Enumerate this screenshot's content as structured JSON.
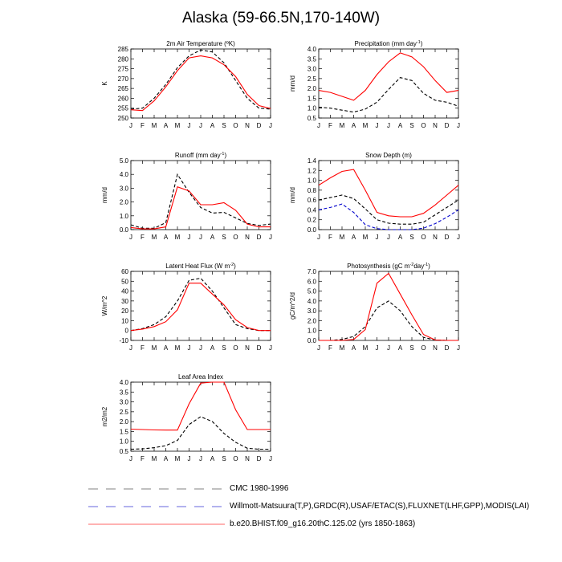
{
  "title": "Alaska (59-66.5N,170-140W)",
  "months": [
    "J",
    "F",
    "M",
    "A",
    "M",
    "J",
    "J",
    "A",
    "S",
    "O",
    "N",
    "D",
    "J"
  ],
  "series_style": {
    "cmc": {
      "color": "#000000",
      "dashed": true
    },
    "willmott": {
      "color": "#0000cc",
      "dashed": true
    },
    "model": {
      "color": "#ff0000",
      "dashed": false
    }
  },
  "legend": [
    {
      "key": "cmc",
      "label": "CMC 1980-1996",
      "color": "#808080"
    },
    {
      "key": "willmott",
      "label": "Willmott-Matsuura(T,P),GRDC(R),USAF/ETAC(S),FLUXNET(LHF,GPP),MODIS(LAI)",
      "color": "#6666dd"
    },
    {
      "key": "model",
      "label": "b.e20.BHIST.f09_g16.20thC.125.02 (yrs 1850-1863)",
      "color": "#ff6666"
    }
  ],
  "chart_data": [
    {
      "type": "line",
      "title": "2m Air Temperature (ºK)",
      "ylabel": "K",
      "ylim": [
        250,
        285
      ],
      "yticks": [
        "250",
        "255",
        "260",
        "265",
        "270",
        "275",
        "280",
        "285"
      ],
      "x": [
        "J",
        "F",
        "M",
        "A",
        "M",
        "J",
        "J",
        "A",
        "S",
        "O",
        "N",
        "D",
        "J"
      ],
      "series": [
        {
          "key": "cmc",
          "name": "CMC 1980-1996",
          "values": [
            254.5,
            255,
            260,
            267,
            275.5,
            281.5,
            284.5,
            283.5,
            278,
            269,
            260,
            255,
            254.5
          ]
        },
        {
          "key": "model",
          "name": "b.e20.BHIST",
          "values": [
            254.2,
            253.8,
            258.7,
            265.8,
            274,
            280.5,
            281.5,
            280.5,
            277,
            271,
            262,
            256.3,
            254.8
          ]
        }
      ]
    },
    {
      "type": "line",
      "title": "Precipitation (mm day-1)",
      "ylabel": "mm/d",
      "ylim": [
        0.5,
        4.0
      ],
      "yticks": [
        "0.5",
        "1.0",
        "1.5",
        "2.0",
        "2.5",
        "3.0",
        "3.5",
        "4.0"
      ],
      "x": [
        "J",
        "F",
        "M",
        "A",
        "M",
        "J",
        "J",
        "A",
        "S",
        "O",
        "N",
        "D",
        "J"
      ],
      "series": [
        {
          "key": "cmc",
          "name": "Willmott-Matsuura",
          "values": [
            1.05,
            1.0,
            0.9,
            0.8,
            0.95,
            1.3,
            1.95,
            2.55,
            2.4,
            1.75,
            1.4,
            1.3,
            1.1
          ]
        },
        {
          "key": "model",
          "name": "b.e20.BHIST",
          "values": [
            1.9,
            1.8,
            1.6,
            1.4,
            1.9,
            2.7,
            3.35,
            3.8,
            3.6,
            3.1,
            2.4,
            1.8,
            1.9
          ]
        }
      ]
    },
    {
      "type": "line",
      "title": "Runoff (mm day-1)",
      "ylabel": "mm/d",
      "ylim": [
        0.0,
        5.0
      ],
      "yticks": [
        "0.0",
        "1.0",
        "2.0",
        "3.0",
        "4.0",
        "5.0"
      ],
      "x": [
        "J",
        "F",
        "M",
        "A",
        "M",
        "J",
        "J",
        "A",
        "S",
        "O",
        "N",
        "D",
        "J"
      ],
      "series": [
        {
          "key": "cmc",
          "name": "GRDC",
          "values": [
            0.35,
            0.1,
            0.1,
            0.5,
            4.0,
            2.7,
            1.6,
            1.2,
            1.25,
            0.85,
            0.45,
            0.3,
            0.4
          ]
        },
        {
          "key": "model",
          "name": "b.e20.BHIST",
          "values": [
            0.15,
            0.05,
            0.05,
            0.2,
            3.1,
            2.8,
            1.8,
            1.8,
            1.95,
            1.4,
            0.4,
            0.2,
            0.2
          ]
        }
      ]
    },
    {
      "type": "line",
      "title": "Snow Depth (m)",
      "ylabel": "mm/d",
      "ylim": [
        0.0,
        1.4
      ],
      "yticks": [
        "0.0",
        "0.2",
        "0.4",
        "0.6",
        "0.8",
        "1.0",
        "1.2",
        "1.4"
      ],
      "x": [
        "J",
        "F",
        "M",
        "A",
        "M",
        "J",
        "J",
        "A",
        "S",
        "O",
        "N",
        "D",
        "J"
      ],
      "series": [
        {
          "key": "cmc",
          "name": "CMC 1980-1996",
          "values": [
            0.6,
            0.65,
            0.7,
            0.63,
            0.42,
            0.2,
            0.13,
            0.11,
            0.11,
            0.15,
            0.3,
            0.45,
            0.6
          ]
        },
        {
          "key": "willmott",
          "name": "USAF/ETAC",
          "values": [
            0.4,
            0.45,
            0.52,
            0.35,
            0.1,
            0.02,
            0.0,
            0.0,
            0.0,
            0.03,
            0.12,
            0.25,
            0.4
          ]
        },
        {
          "key": "model",
          "name": "b.e20.BHIST",
          "values": [
            0.9,
            1.05,
            1.18,
            1.22,
            0.8,
            0.35,
            0.28,
            0.26,
            0.26,
            0.33,
            0.5,
            0.7,
            0.9
          ]
        }
      ]
    },
    {
      "type": "line",
      "title": "Latent Heat Flux (W m-2)",
      "ylabel": "W/m^2",
      "ylim": [
        -10,
        60
      ],
      "yticks": [
        "-10",
        "0",
        "10",
        "20",
        "30",
        "40",
        "50",
        "60"
      ],
      "x": [
        "J",
        "F",
        "M",
        "A",
        "M",
        "J",
        "J",
        "A",
        "S",
        "O",
        "N",
        "D",
        "J"
      ],
      "series": [
        {
          "key": "cmc",
          "name": "FLUXNET",
          "values": [
            0,
            2,
            6,
            14,
            30,
            51,
            53,
            40,
            23,
            6,
            2,
            0,
            0
          ]
        },
        {
          "key": "model",
          "name": "b.e20.BHIST",
          "values": [
            0,
            1.5,
            4,
            9,
            21,
            48,
            48,
            37,
            26,
            11,
            3,
            0,
            0
          ]
        }
      ]
    },
    {
      "type": "line",
      "title": "Photosynthesis (gC m-2day-1)",
      "ylabel": "gC/m^2/d",
      "ylim": [
        0.0,
        7.0
      ],
      "yticks": [
        "0.0",
        "1.0",
        "2.0",
        "3.0",
        "4.0",
        "5.0",
        "6.0",
        "7.0"
      ],
      "x": [
        "J",
        "F",
        "M",
        "A",
        "M",
        "J",
        "J",
        "A",
        "S",
        "O",
        "N",
        "D",
        "J"
      ],
      "series": [
        {
          "key": "cmc",
          "name": "FLUXNET",
          "values": [
            0,
            0,
            0.1,
            0.4,
            1.4,
            3.3,
            4.0,
            3.0,
            1.4,
            0.3,
            0.05,
            0,
            0
          ]
        },
        {
          "key": "model",
          "name": "b.e20.BHIST",
          "values": [
            0,
            0,
            0,
            0.1,
            1.1,
            5.8,
            6.8,
            4.7,
            2.6,
            0.6,
            0.05,
            0,
            0
          ]
        }
      ]
    },
    {
      "type": "line",
      "title": "Leaf Area Index",
      "ylabel": "m2/m2",
      "ylim": [
        0.5,
        4.0
      ],
      "yticks": [
        "0.5",
        "1.0",
        "1.5",
        "2.0",
        "2.5",
        "3.0",
        "3.5",
        "4.0"
      ],
      "x": [
        "J",
        "F",
        "M",
        "A",
        "M",
        "J",
        "J",
        "A",
        "S",
        "O",
        "N",
        "D",
        "J"
      ],
      "series": [
        {
          "key": "cmc",
          "name": "MODIS",
          "values": [
            0.6,
            0.62,
            0.68,
            0.78,
            1.05,
            1.85,
            2.25,
            2.0,
            1.4,
            0.95,
            0.65,
            0.6,
            0.6
          ]
        },
        {
          "key": "model",
          "name": "b.e20.BHIST",
          "values": [
            1.62,
            1.6,
            1.58,
            1.57,
            1.57,
            2.9,
            3.95,
            4.0,
            4.0,
            2.6,
            1.6,
            1.6,
            1.6
          ]
        }
      ]
    }
  ]
}
